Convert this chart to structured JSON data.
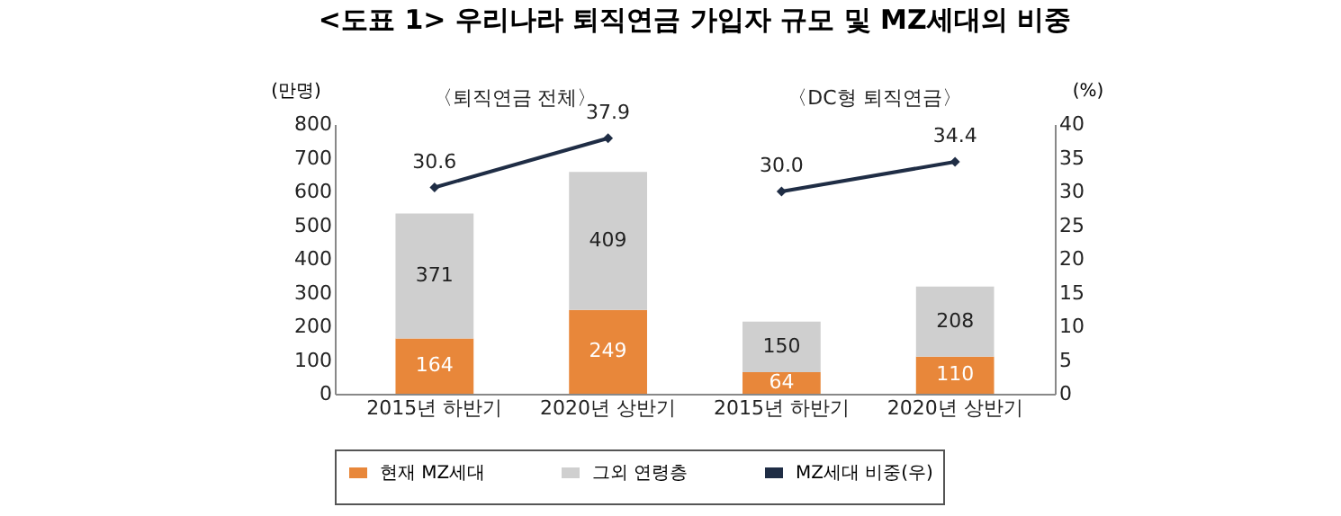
{
  "chart_data": {
    "type": "bar",
    "title": "<도표 1> 우리나라 퇴직연금 가입자 규모 및 MZ세대의 비중",
    "categories": [
      "2015년 하반기",
      "2020년 상반기",
      "2015년 하반기",
      "2020년 상반기"
    ],
    "stacked": true,
    "data_labels": true,
    "grid": false,
    "legend": "bottom",
    "marker": "diamond",
    "ylabel": "(만명)",
    "y2label": "(%)",
    "ylim": [
      0,
      800
    ],
    "yticks": [
      0,
      100,
      200,
      300,
      400,
      500,
      600,
      700,
      800
    ],
    "y2lim": [
      0,
      40
    ],
    "y2ticks": [
      0,
      5,
      10,
      15,
      20,
      25,
      30,
      35,
      40
    ],
    "annotations": [
      "〈퇴직연금 전체〉",
      "〈DC형 퇴직연금〉"
    ],
    "series": [
      {
        "name": "현재 MZ세대",
        "color": "#e8873a",
        "values": [
          164,
          249,
          64,
          110
        ]
      },
      {
        "name": "그외 연령층",
        "color": "#cfcfcf",
        "values": [
          371,
          409,
          150,
          208
        ]
      },
      {
        "name": "MZ세대 비중(우)",
        "type": "line",
        "axis": "y2",
        "color": "#1f2d45",
        "values": [
          30.6,
          37.9,
          null,
          null
        ],
        "value_labels": [
          "30.6",
          "37.9",
          null,
          null
        ]
      },
      {
        "type": "line",
        "axis": "y2",
        "color": "#1f2d45",
        "values": [
          null,
          null,
          30.0,
          34.4
        ],
        "value_labels": [
          null,
          null,
          "30.0",
          "34.4"
        ]
      }
    ]
  }
}
